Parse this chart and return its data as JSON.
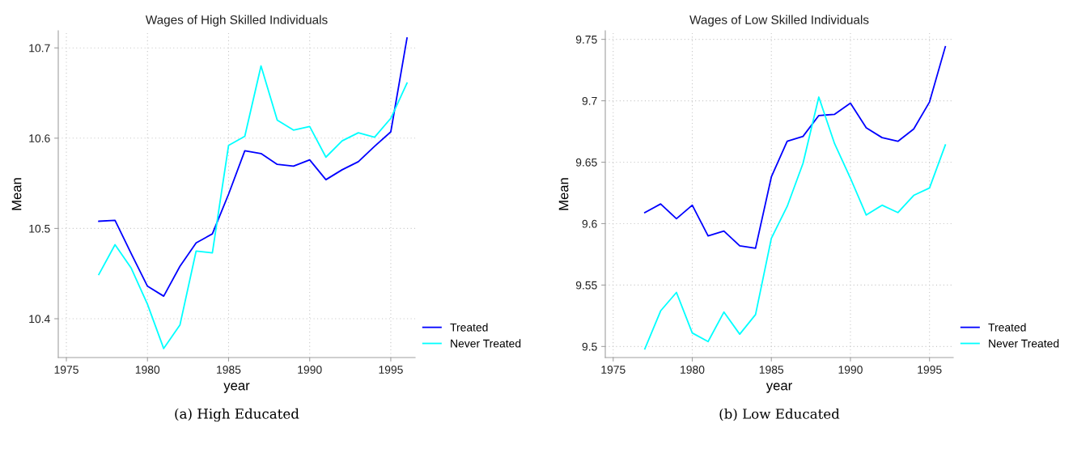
{
  "chart_data": [
    {
      "type": "line",
      "title": "Wages of High Skilled Individuals",
      "xlabel": "year",
      "ylabel": "Mean",
      "x": [
        1977,
        1978,
        1979,
        1980,
        1981,
        1982,
        1983,
        1984,
        1985,
        1986,
        1987,
        1988,
        1989,
        1990,
        1991,
        1992,
        1993,
        1994,
        1995,
        1996
      ],
      "series": [
        {
          "name": "Treated",
          "color": "#0000ff",
          "values": [
            10.508,
            10.509,
            10.472,
            10.436,
            10.425,
            10.458,
            10.484,
            10.494,
            10.538,
            10.586,
            10.583,
            10.571,
            10.569,
            10.576,
            10.554,
            10.565,
            10.574,
            10.591,
            10.607,
            10.711
          ]
        },
        {
          "name": "Never Treated",
          "color": "#00ffff",
          "values": [
            10.449,
            10.482,
            10.456,
            10.416,
            10.367,
            10.393,
            10.475,
            10.473,
            10.592,
            10.602,
            10.68,
            10.62,
            10.609,
            10.613,
            10.579,
            10.597,
            10.606,
            10.601,
            10.622,
            10.661
          ]
        }
      ],
      "xlim": [
        1974.5,
        1996.5
      ],
      "xticks": [
        1975,
        1980,
        1985,
        1990,
        1995
      ],
      "ylim": [
        10.357,
        10.719
      ],
      "yticks": [
        10.4,
        10.5,
        10.6,
        10.7
      ],
      "grid": true,
      "legend": "bottom right",
      "line_style": "solid",
      "marker": "none",
      "annotations": [
        "(a) High Educated"
      ]
    },
    {
      "type": "line",
      "title": "Wages of Low Skilled Individuals",
      "xlabel": "year",
      "ylabel": "Mean",
      "x": [
        1977,
        1978,
        1979,
        1980,
        1981,
        1982,
        1983,
        1984,
        1985,
        1986,
        1987,
        1988,
        1989,
        1990,
        1991,
        1992,
        1993,
        1994,
        1995,
        1996
      ],
      "series": [
        {
          "name": "Treated",
          "color": "#0000ff",
          "values": [
            9.609,
            9.616,
            9.604,
            9.615,
            9.59,
            9.594,
            9.582,
            9.58,
            9.638,
            9.667,
            9.671,
            9.688,
            9.689,
            9.698,
            9.678,
            9.67,
            9.667,
            9.677,
            9.699,
            9.744
          ]
        },
        {
          "name": "Never Treated",
          "color": "#00ffff",
          "values": [
            9.498,
            9.529,
            9.544,
            9.511,
            9.504,
            9.528,
            9.51,
            9.526,
            9.588,
            9.614,
            9.649,
            9.703,
            9.665,
            9.637,
            9.607,
            9.615,
            9.609,
            9.623,
            9.629,
            9.664
          ]
        }
      ],
      "xlim": [
        1974.5,
        1996.5
      ],
      "xticks": [
        1975,
        1980,
        1985,
        1990,
        1995
      ],
      "ylim": [
        9.491,
        9.757
      ],
      "yticks": [
        9.5,
        9.55,
        9.6,
        9.65,
        9.7,
        9.75
      ],
      "grid": true,
      "legend": "bottom right",
      "line_style": "solid",
      "marker": "none",
      "annotations": [
        "(b) Low Educated"
      ]
    }
  ]
}
